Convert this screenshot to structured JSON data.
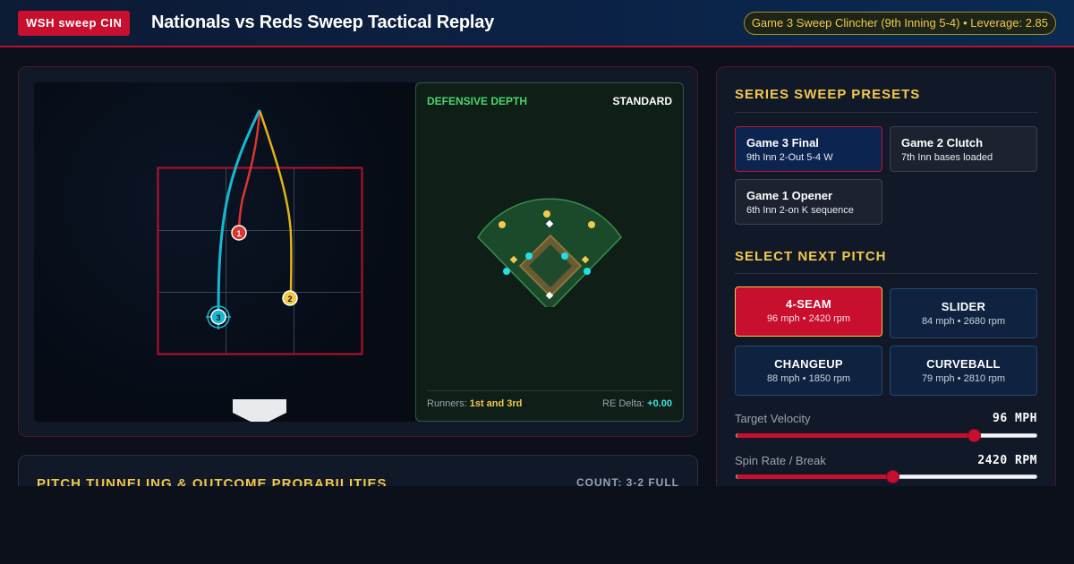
{
  "header": {
    "badge": "WSH sweep CIN",
    "title": "Nationals vs Reds Sweep Tactical Replay",
    "context": "Game 3 Sweep Clincher (9th Inning 5-4) • Leverage: 2.85"
  },
  "replay": {
    "pitch_markers": [
      "1",
      "2",
      "3"
    ],
    "depth": {
      "label": "DEFENSIVE DEPTH",
      "value": "STANDARD",
      "runners_label": "Runners:",
      "runners_value": "1st and 3rd",
      "re_label": "RE Delta:",
      "re_value": "+0.00"
    }
  },
  "tunnel": {
    "title": "PITCH TUNNELING & OUTCOME PROBABILITIES",
    "count": "COUNT: 3-2 FULL"
  },
  "presets": {
    "title": "SERIES SWEEP PRESETS",
    "items": [
      {
        "name": "Game 3 Final",
        "desc": "9th Inn 2-Out 5-4 W",
        "active": true
      },
      {
        "name": "Game 2 Clutch",
        "desc": "7th Inn bases loaded",
        "active": false
      },
      {
        "name": "Game 1 Opener",
        "desc": "6th Inn 2-on K sequence",
        "active": false
      }
    ]
  },
  "pitches": {
    "title": "SELECT NEXT PITCH",
    "items": [
      {
        "name": "4-SEAM",
        "meta": "96 mph • 2420 rpm",
        "active": true
      },
      {
        "name": "SLIDER",
        "meta": "84 mph • 2680 rpm",
        "active": false
      },
      {
        "name": "CHANGEUP",
        "meta": "88 mph • 1850 rpm",
        "active": false
      },
      {
        "name": "CURVEBALL",
        "meta": "79 mph • 2810 rpm",
        "active": false
      }
    ]
  },
  "sliders": {
    "velocity": {
      "label": "Target Velocity",
      "value": "96 MPH",
      "level": 0.79
    },
    "spin": {
      "label": "Spin Rate / Break",
      "value": "2420 RPM",
      "level": 0.52
    }
  },
  "colors": {
    "accent_red": "#c8102e",
    "accent_gold": "#f2c94c",
    "pitch_1": "#d8362e",
    "pitch_2": "#e0b21c",
    "pitch_3": "#18b8d0",
    "fielder": "#f2c94c",
    "infielder": "#1fe0e6"
  }
}
